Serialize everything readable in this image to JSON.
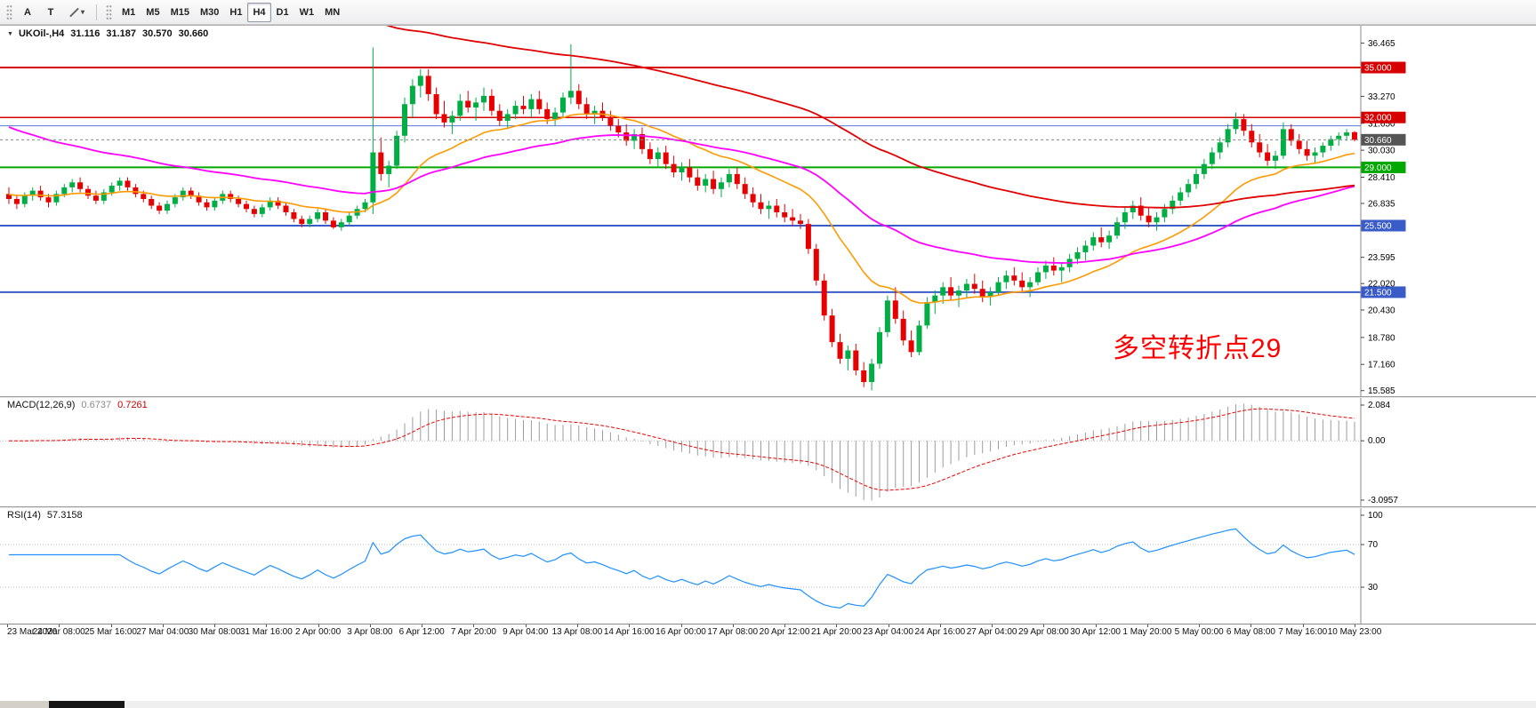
{
  "toolbar": {
    "cursor_tool": "A",
    "text_tool": "T",
    "timeframes": [
      "M1",
      "M5",
      "M15",
      "M30",
      "H1",
      "H4",
      "D1",
      "W1",
      "MN"
    ],
    "active_timeframe": "H4"
  },
  "main_chart": {
    "collapse_icon": "triangle-down",
    "symbol": "UKOil-,H4",
    "open": "31.116",
    "high": "31.187",
    "low": "30.570",
    "close": "30.660",
    "annotation": {
      "text": "多空转折点29",
      "color": "#fe0000"
    }
  },
  "indicators": {
    "macd": {
      "label": "MACD(12,26,9)",
      "main_value": "0.6737",
      "signal_value": "0.7261"
    },
    "rsi": {
      "label": "RSI(14)",
      "value": "57.3158"
    }
  },
  "chart_data": {
    "type": "candlestick",
    "symbol": "UKOil-,H4",
    "timeframe": "H4",
    "price_range": [
      15.57,
      37.19
    ],
    "bull_color": "#00ae44",
    "bear_color": "#e60000",
    "price_ticks": [
      "36.465",
      "33.270",
      "31.650",
      "30.030",
      "28.410",
      "26.835",
      "23.595",
      "22.020",
      "20.430",
      "18.780",
      "17.160",
      "15.585"
    ],
    "hlines": [
      {
        "price": 35.0,
        "label": "35.000",
        "color": "#d60000",
        "width": 2,
        "badge": true
      },
      {
        "price": 32.0,
        "label": "32.000",
        "color": "#d60000",
        "width": 1.5,
        "badge": true
      },
      {
        "price": 31.5,
        "label": "",
        "color": "#5a78d6",
        "width": 1,
        "badge": false
      },
      {
        "price": 29.0,
        "label": "29.000",
        "color": "#00a800",
        "width": 2,
        "badge": true
      },
      {
        "price": 25.5,
        "label": "25.500",
        "color": "#3a5cc8",
        "width": 2,
        "badge": true
      },
      {
        "price": 21.5,
        "label": "21.500",
        "color": "#3a5cc8",
        "width": 2,
        "badge": true
      }
    ],
    "current_price": {
      "price": 30.66,
      "label": "30.660",
      "color": "#555555"
    },
    "mas": [
      {
        "name": "fast-ma-orange",
        "period": 20,
        "seed": 27.4,
        "color": "#ff9900",
        "width": 1.6
      },
      {
        "name": "slow-ma-magenta",
        "period": 50,
        "seed": 31.6,
        "color": "#ff00ff",
        "width": 1.8
      },
      {
        "name": "long-ma-red",
        "period": 100,
        "seed": 55.0,
        "color": "#e00000",
        "width": 1.8
      }
    ],
    "macd": {
      "fast": 12,
      "slow": 26,
      "signal": 9,
      "hist_color": "#9c9c9c",
      "signal_color": "#ee0000",
      "scale_labels": [
        "2.084",
        "0.00",
        "-3.0957"
      ]
    },
    "rsi": {
      "period": 14,
      "color": "#1e90ff",
      "levels": [
        70,
        30
      ],
      "scale_labels": [
        "100",
        "70",
        "30"
      ]
    },
    "x_labels": [
      "23 Mar 2020",
      "24 Mar 08:00",
      "25 Mar 16:00",
      "27 Mar 04:00",
      "30 Mar 08:00",
      "31 Mar 16:00",
      "2 Apr 00:00",
      "3 Apr 08:00",
      "6 Apr 12:00",
      "7 Apr 20:00",
      "9 Apr 04:00",
      "13 Apr 08:00",
      "14 Apr 16:00",
      "16 Apr 00:00",
      "17 Apr 08:00",
      "20 Apr 12:00",
      "21 Apr 20:00",
      "23 Apr 04:00",
      "24 Apr 16:00",
      "27 Apr 04:00",
      "29 Apr 08:00",
      "30 Apr 12:00",
      "1 May 20:00",
      "5 May 00:00",
      "6 May 08:00",
      "7 May 16:00",
      "10 May 23:00"
    ],
    "candles": [
      [
        27.4,
        27.8,
        26.8,
        27.1
      ],
      [
        27.1,
        27.3,
        26.5,
        26.8
      ],
      [
        26.8,
        27.5,
        26.6,
        27.3
      ],
      [
        27.3,
        27.8,
        27.0,
        27.6
      ],
      [
        27.6,
        27.9,
        27.0,
        27.2
      ],
      [
        27.2,
        27.4,
        26.6,
        26.9
      ],
      [
        26.9,
        27.6,
        26.7,
        27.4
      ],
      [
        27.4,
        28.0,
        27.2,
        27.8
      ],
      [
        27.8,
        28.3,
        27.5,
        28.1
      ],
      [
        28.1,
        28.4,
        27.5,
        27.7
      ],
      [
        27.7,
        27.9,
        27.1,
        27.3
      ],
      [
        27.3,
        27.6,
        26.8,
        27.0
      ],
      [
        27.0,
        27.7,
        26.8,
        27.5
      ],
      [
        27.5,
        28.1,
        27.3,
        27.9
      ],
      [
        27.9,
        28.4,
        27.6,
        28.2
      ],
      [
        28.2,
        28.4,
        27.6,
        27.8
      ],
      [
        27.8,
        28.0,
        27.2,
        27.4
      ],
      [
        27.4,
        27.6,
        26.9,
        27.1
      ],
      [
        27.1,
        27.3,
        26.5,
        26.7
      ],
      [
        26.7,
        26.9,
        26.2,
        26.4
      ],
      [
        26.4,
        27.0,
        26.2,
        26.8
      ],
      [
        26.8,
        27.4,
        26.6,
        27.2
      ],
      [
        27.2,
        27.8,
        27.0,
        27.6
      ],
      [
        27.6,
        27.8,
        27.1,
        27.3
      ],
      [
        27.3,
        27.5,
        26.7,
        26.9
      ],
      [
        26.9,
        27.1,
        26.4,
        26.6
      ],
      [
        26.6,
        27.2,
        26.4,
        27.0
      ],
      [
        27.0,
        27.6,
        26.8,
        27.4
      ],
      [
        27.4,
        27.6,
        26.9,
        27.1
      ],
      [
        27.1,
        27.3,
        26.6,
        26.8
      ],
      [
        26.8,
        27.0,
        26.3,
        26.5
      ],
      [
        26.5,
        26.7,
        26.0,
        26.2
      ],
      [
        26.2,
        26.8,
        26.0,
        26.6
      ],
      [
        26.6,
        27.2,
        26.4,
        27.0
      ],
      [
        27.0,
        27.2,
        26.5,
        26.7
      ],
      [
        26.7,
        26.9,
        26.1,
        26.3
      ],
      [
        26.3,
        26.5,
        25.7,
        25.9
      ],
      [
        25.9,
        26.1,
        25.4,
        25.6
      ],
      [
        25.6,
        26.1,
        25.4,
        25.9
      ],
      [
        25.9,
        26.5,
        25.7,
        26.3
      ],
      [
        26.3,
        26.5,
        25.6,
        25.8
      ],
      [
        25.8,
        26.0,
        25.3,
        25.4
      ],
      [
        25.4,
        25.9,
        25.2,
        25.7
      ],
      [
        25.7,
        26.3,
        25.5,
        26.1
      ],
      [
        26.1,
        26.7,
        25.9,
        26.5
      ],
      [
        26.5,
        27.1,
        26.3,
        26.9
      ],
      [
        26.9,
        36.2,
        26.2,
        29.9
      ],
      [
        29.9,
        30.8,
        28.2,
        28.6
      ],
      [
        28.6,
        29.4,
        27.8,
        29.1
      ],
      [
        29.1,
        31.2,
        28.9,
        30.9
      ],
      [
        30.9,
        33.2,
        30.5,
        32.8
      ],
      [
        32.8,
        34.3,
        32.0,
        33.9
      ],
      [
        33.9,
        34.9,
        33.2,
        34.5
      ],
      [
        34.5,
        34.9,
        33.0,
        33.4
      ],
      [
        33.4,
        33.8,
        31.9,
        32.2
      ],
      [
        32.2,
        33.0,
        31.4,
        31.7
      ],
      [
        31.7,
        32.4,
        31.0,
        32.1
      ],
      [
        32.1,
        33.4,
        31.8,
        33.0
      ],
      [
        33.0,
        33.6,
        32.3,
        32.6
      ],
      [
        32.6,
        33.2,
        31.8,
        32.9
      ],
      [
        32.9,
        33.8,
        32.4,
        33.3
      ],
      [
        33.3,
        33.7,
        32.1,
        32.4
      ],
      [
        32.4,
        32.8,
        31.5,
        31.8
      ],
      [
        31.8,
        32.5,
        31.3,
        32.2
      ],
      [
        32.2,
        33.0,
        31.9,
        32.7
      ],
      [
        32.7,
        33.3,
        32.2,
        32.5
      ],
      [
        32.5,
        33.4,
        32.0,
        33.1
      ],
      [
        33.1,
        33.6,
        32.2,
        32.5
      ],
      [
        32.5,
        32.9,
        31.6,
        31.9
      ],
      [
        31.9,
        32.6,
        31.5,
        32.3
      ],
      [
        32.3,
        33.5,
        32.0,
        33.2
      ],
      [
        33.2,
        36.4,
        32.8,
        33.6
      ],
      [
        33.6,
        34.0,
        32.5,
        32.8
      ],
      [
        32.8,
        33.2,
        31.9,
        32.2
      ],
      [
        32.2,
        32.7,
        31.6,
        32.4
      ],
      [
        32.4,
        32.9,
        31.8,
        32.0
      ],
      [
        32.0,
        32.4,
        31.2,
        31.5
      ],
      [
        31.5,
        31.9,
        30.8,
        31.1
      ],
      [
        31.1,
        31.6,
        30.3,
        30.6
      ],
      [
        30.6,
        31.3,
        30.1,
        31.0
      ],
      [
        31.0,
        31.4,
        29.8,
        30.1
      ],
      [
        30.1,
        30.5,
        29.2,
        29.5
      ],
      [
        29.5,
        30.2,
        29.0,
        29.9
      ],
      [
        29.9,
        30.3,
        28.9,
        29.2
      ],
      [
        29.2,
        29.7,
        28.4,
        28.7
      ],
      [
        28.7,
        29.3,
        28.2,
        29.0
      ],
      [
        29.0,
        29.5,
        28.1,
        28.4
      ],
      [
        28.4,
        28.9,
        27.6,
        27.9
      ],
      [
        27.9,
        28.6,
        27.5,
        28.3
      ],
      [
        28.3,
        28.8,
        27.4,
        27.7
      ],
      [
        27.7,
        28.4,
        27.2,
        28.1
      ],
      [
        28.1,
        28.9,
        27.8,
        28.6
      ],
      [
        28.6,
        29.0,
        27.7,
        28.0
      ],
      [
        28.0,
        28.4,
        27.1,
        27.4
      ],
      [
        27.4,
        27.8,
        26.6,
        26.9
      ],
      [
        26.9,
        27.4,
        26.2,
        26.5
      ],
      [
        26.5,
        27.0,
        25.9,
        26.7
      ],
      [
        26.7,
        27.1,
        26.0,
        26.3
      ],
      [
        26.3,
        26.8,
        25.7,
        26.0
      ],
      [
        26.0,
        26.5,
        25.5,
        25.8
      ],
      [
        25.8,
        26.2,
        25.3,
        25.6
      ],
      [
        25.6,
        25.9,
        23.8,
        24.1
      ],
      [
        24.1,
        24.4,
        21.9,
        22.2
      ],
      [
        22.2,
        22.6,
        19.8,
        20.1
      ],
      [
        20.1,
        20.5,
        18.2,
        18.5
      ],
      [
        18.5,
        19.0,
        17.2,
        17.5
      ],
      [
        17.5,
        18.3,
        16.8,
        18.0
      ],
      [
        18.0,
        18.4,
        16.5,
        16.8
      ],
      [
        16.8,
        17.3,
        15.8,
        16.1
      ],
      [
        16.1,
        17.5,
        15.6,
        17.2
      ],
      [
        17.2,
        19.4,
        16.9,
        19.1
      ],
      [
        19.1,
        21.3,
        18.8,
        21.0
      ],
      [
        21.0,
        21.8,
        19.6,
        19.9
      ],
      [
        19.9,
        20.4,
        18.3,
        18.6
      ],
      [
        18.6,
        19.2,
        17.6,
        17.9
      ],
      [
        17.9,
        19.8,
        17.7,
        19.5
      ],
      [
        19.5,
        21.2,
        19.3,
        20.9
      ],
      [
        20.9,
        21.6,
        20.2,
        21.3
      ],
      [
        21.3,
        22.1,
        20.8,
        21.8
      ],
      [
        21.8,
        22.4,
        21.0,
        21.3
      ],
      [
        21.3,
        21.9,
        20.6,
        21.6
      ],
      [
        21.6,
        22.3,
        21.2,
        22.0
      ],
      [
        22.0,
        22.6,
        21.4,
        21.7
      ],
      [
        21.7,
        22.2,
        20.9,
        21.2
      ],
      [
        21.2,
        21.8,
        20.7,
        21.5
      ],
      [
        21.5,
        22.4,
        21.3,
        22.1
      ],
      [
        22.1,
        22.8,
        21.7,
        22.5
      ],
      [
        22.5,
        23.0,
        21.9,
        22.2
      ],
      [
        22.2,
        22.7,
        21.5,
        21.8
      ],
      [
        21.8,
        22.4,
        21.2,
        22.1
      ],
      [
        22.1,
        23.0,
        21.9,
        22.7
      ],
      [
        22.7,
        23.4,
        22.3,
        23.1
      ],
      [
        23.1,
        23.6,
        22.5,
        22.8
      ],
      [
        22.8,
        23.3,
        22.1,
        23.0
      ],
      [
        23.0,
        23.8,
        22.7,
        23.5
      ],
      [
        23.5,
        24.2,
        23.2,
        23.9
      ],
      [
        23.9,
        24.6,
        23.4,
        24.3
      ],
      [
        24.3,
        25.1,
        24.0,
        24.8
      ],
      [
        24.8,
        25.4,
        24.2,
        24.5
      ],
      [
        24.5,
        25.2,
        24.1,
        24.9
      ],
      [
        24.9,
        26.0,
        24.7,
        25.7
      ],
      [
        25.7,
        26.6,
        25.3,
        26.3
      ],
      [
        26.3,
        27.0,
        25.9,
        26.7
      ],
      [
        26.7,
        27.2,
        25.8,
        26.1
      ],
      [
        26.1,
        26.6,
        25.4,
        25.7
      ],
      [
        25.7,
        26.3,
        25.2,
        26.0
      ],
      [
        26.0,
        26.8,
        25.7,
        26.5
      ],
      [
        26.5,
        27.3,
        26.2,
        27.0
      ],
      [
        27.0,
        27.8,
        26.7,
        27.5
      ],
      [
        27.5,
        28.3,
        27.2,
        28.0
      ],
      [
        28.0,
        28.9,
        27.7,
        28.6
      ],
      [
        28.6,
        29.5,
        28.3,
        29.2
      ],
      [
        29.2,
        30.2,
        28.9,
        29.9
      ],
      [
        29.9,
        30.8,
        29.5,
        30.5
      ],
      [
        30.5,
        31.6,
        30.2,
        31.3
      ],
      [
        31.3,
        32.3,
        31.0,
        31.9
      ],
      [
        31.9,
        32.2,
        30.9,
        31.2
      ],
      [
        31.2,
        31.6,
        30.2,
        30.5
      ],
      [
        30.5,
        31.0,
        29.6,
        29.9
      ],
      [
        29.9,
        30.4,
        29.1,
        29.4
      ],
      [
        29.4,
        30.0,
        28.9,
        29.7
      ],
      [
        29.7,
        31.7,
        29.5,
        31.3
      ],
      [
        31.3,
        31.6,
        30.3,
        30.6
      ],
      [
        30.6,
        31.0,
        29.8,
        30.1
      ],
      [
        30.1,
        30.6,
        29.4,
        29.7
      ],
      [
        29.7,
        30.2,
        29.2,
        29.9
      ],
      [
        29.9,
        30.5,
        29.6,
        30.3
      ],
      [
        30.3,
        30.9,
        30.0,
        30.7
      ],
      [
        30.7,
        31.1,
        30.3,
        30.9
      ],
      [
        30.9,
        31.3,
        30.6,
        31.1
      ],
      [
        31.116,
        31.187,
        30.57,
        30.66
      ]
    ]
  }
}
